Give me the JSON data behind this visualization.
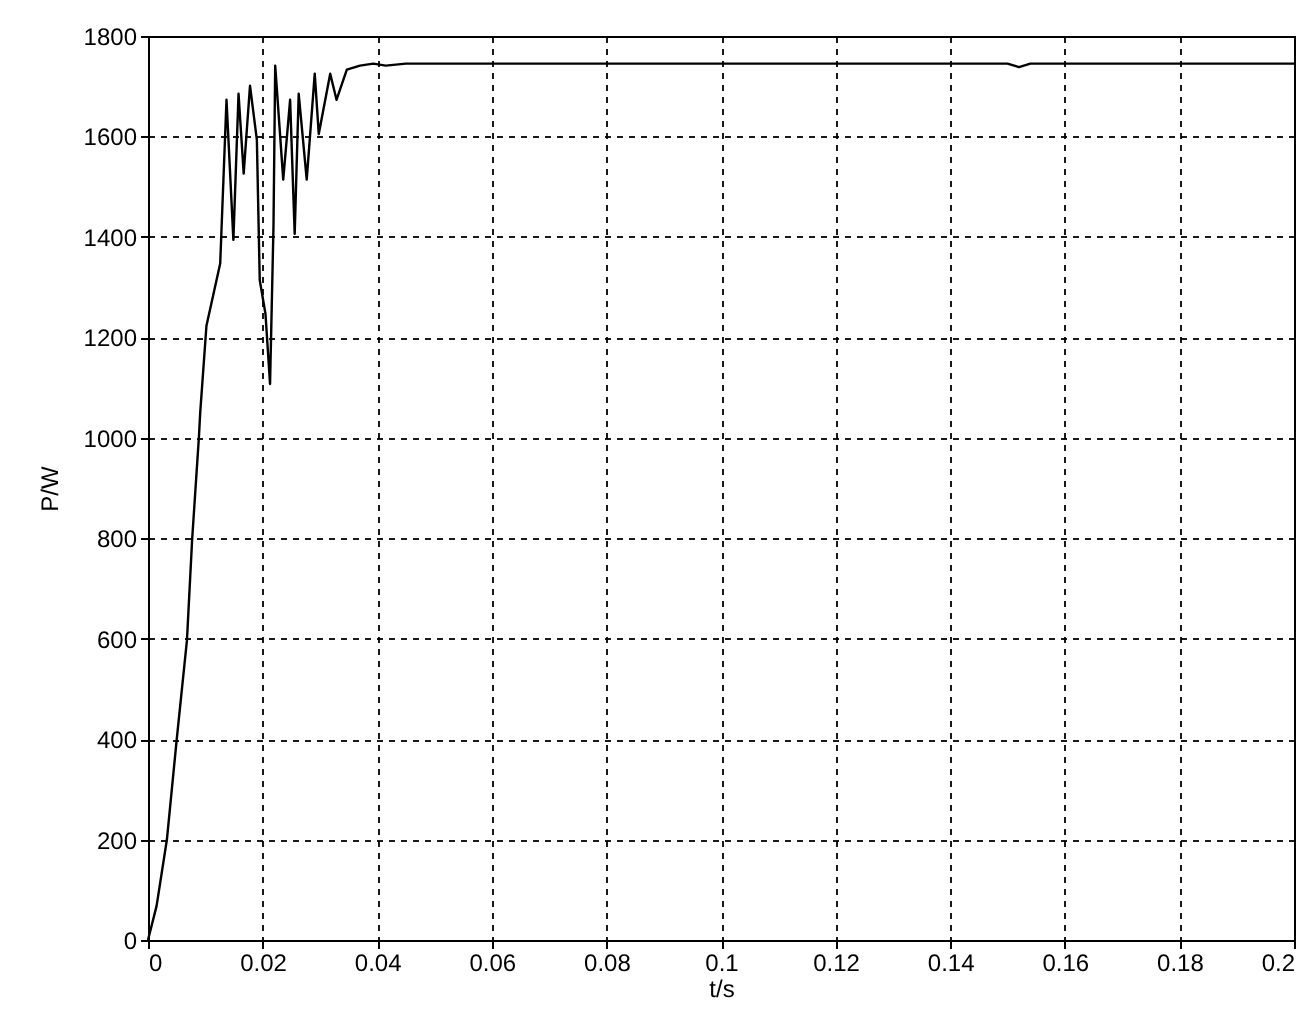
{
  "chart_data": {
    "type": "line",
    "xlabel": "t/s",
    "ylabel": "P/W",
    "x": [
      0,
      0.0015,
      0.0033,
      0.005,
      0.0068,
      0.0077,
      0.0089,
      0.0091,
      0.0102,
      0.0126,
      0.0137,
      0.0149,
      0.0158,
      0.0167,
      0.0178,
      0.019,
      0.0195,
      0.0205,
      0.0213,
      0.0219,
      0.0222,
      0.0236,
      0.0248,
      0.0256,
      0.0263,
      0.0277,
      0.0291,
      0.0298,
      0.0318,
      0.0329,
      0.0347,
      0.037,
      0.0393,
      0.0415,
      0.045,
      0.15,
      0.152,
      0.154,
      0.2
    ],
    "series": [
      {
        "color": "#000000",
        "values": [
          0,
          68,
          200,
          398,
          597,
          797,
          1004,
          1048,
          1223,
          1347,
          1673,
          1394,
          1685,
          1526,
          1701,
          1593,
          1314,
          1247,
          1107,
          1422,
          1741,
          1514,
          1673,
          1406,
          1685,
          1514,
          1725,
          1605,
          1725,
          1673,
          1733,
          1741,
          1745,
          1741,
          1745,
          1745,
          1738,
          1745,
          1745
        ]
      }
    ],
    "xlim": [
      0,
      0.2
    ],
    "xticks": [
      0,
      0.02,
      0.04,
      0.06,
      0.08,
      0.1,
      0.12,
      0.14,
      0.16,
      0.18,
      0.2
    ],
    "ylim": [
      0,
      1800
    ],
    "yticks": [
      0,
      200,
      400,
      600,
      800,
      1000,
      1200,
      1400,
      1600,
      1800
    ],
    "grid": true,
    "marker": "none",
    "line_style": "solid"
  }
}
